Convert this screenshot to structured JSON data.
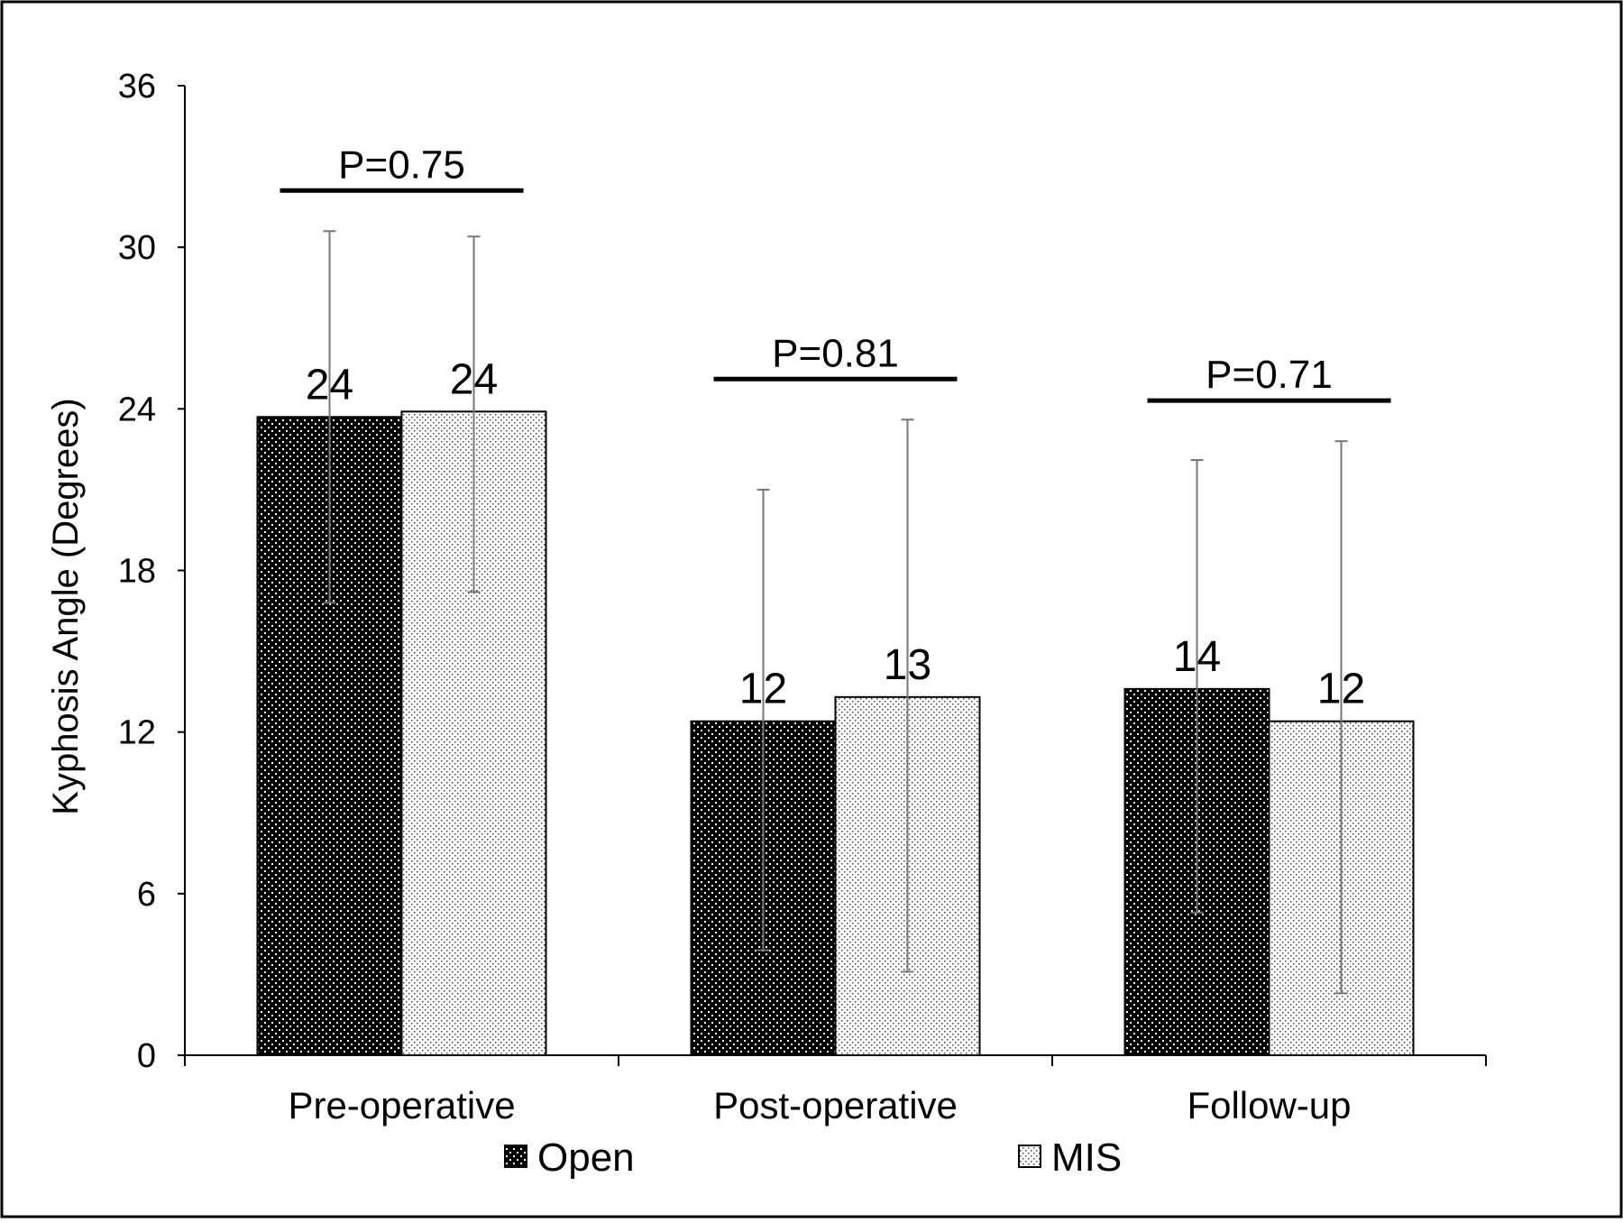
{
  "chart_data": {
    "type": "bar",
    "title": "",
    "xlabel": "",
    "ylabel": "Kyphosis Angle (Degrees)",
    "ylim": [
      0,
      36
    ],
    "yticks": [
      0,
      6,
      12,
      18,
      24,
      30,
      36
    ],
    "ytick_labels": [
      "0",
      "6",
      "12",
      "18",
      "24",
      "30",
      "36"
    ],
    "categories": [
      "Pre-operative",
      "Post-operative",
      "Follow-up"
    ],
    "series": [
      {
        "name": "Open",
        "values": [
          23.7,
          12.4,
          13.6
        ],
        "value_labels": [
          "24",
          "12",
          "14"
        ],
        "error_low": [
          16.8,
          3.9,
          5.3
        ],
        "error_high": [
          30.6,
          21.0,
          22.1
        ],
        "pattern": "dark-dotted"
      },
      {
        "name": "MIS",
        "values": [
          23.9,
          13.3,
          12.4
        ],
        "value_labels": [
          "24",
          "13",
          "12"
        ],
        "error_low": [
          17.2,
          3.1,
          2.3
        ],
        "error_high": [
          30.4,
          23.6,
          22.8
        ],
        "pattern": "light-dotted"
      }
    ],
    "annotations": [
      {
        "text": "P=0.75",
        "category": 0
      },
      {
        "text": "P=0.81",
        "category": 1
      },
      {
        "text": "P=0.71",
        "category": 2
      }
    ],
    "grid": false,
    "legend_position": "bottom"
  }
}
